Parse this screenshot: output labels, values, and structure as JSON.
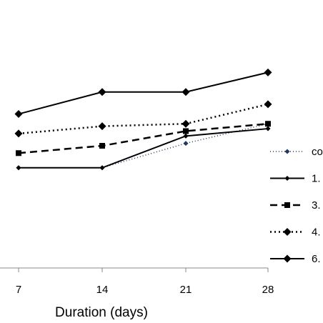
{
  "chart_data": {
    "type": "line",
    "xlabel": "Duration (days)",
    "ylabel": "",
    "title": "",
    "x": [
      7,
      14,
      21,
      28
    ],
    "ylim": [
      0,
      100
    ],
    "grid": false,
    "legend_position": "right",
    "series": [
      {
        "name": "co",
        "style": "dotted-fine",
        "marker": "small-diamond",
        "color": "#1f3864",
        "values": [
          41,
          41,
          51,
          59
        ]
      },
      {
        "name": "1.",
        "style": "solid",
        "marker": "small-diamond",
        "color": "#000000",
        "values": [
          41,
          41,
          54,
          57
        ]
      },
      {
        "name": "3.",
        "style": "dashed",
        "marker": "square",
        "color": "#000000",
        "values": [
          47,
          50,
          56,
          59
        ]
      },
      {
        "name": "4.",
        "style": "dotted",
        "marker": "diamond",
        "color": "#000000",
        "values": [
          55,
          58,
          59,
          67
        ]
      },
      {
        "name": "6.",
        "style": "solid",
        "marker": "diamond",
        "color": "#000000",
        "values": [
          63,
          72,
          72,
          80
        ]
      }
    ]
  }
}
